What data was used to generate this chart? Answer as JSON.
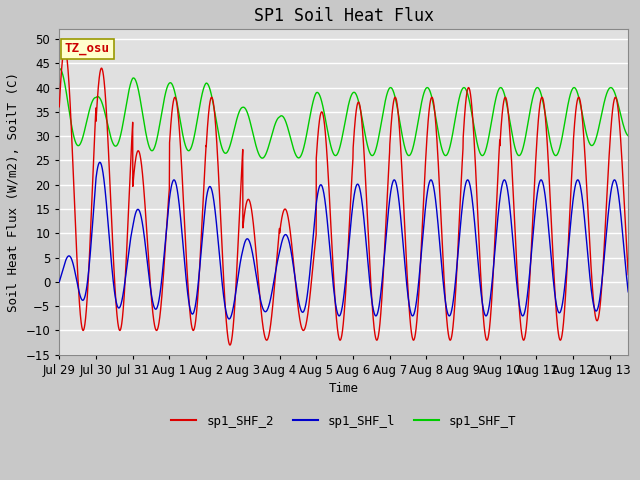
{
  "title": "SP1 Soil Heat Flux",
  "xlabel": "Time",
  "ylabel": "Soil Heat Flux (W/m2), SoilT (C)",
  "ylim": [
    -15,
    52
  ],
  "yticks": [
    -15,
    -10,
    -5,
    0,
    5,
    10,
    15,
    20,
    25,
    30,
    35,
    40,
    45,
    50
  ],
  "xlim": [
    0,
    15.5
  ],
  "bg_color": "#c8c8c8",
  "plot_bg_color": "#e0e0e0",
  "grid_color": "#ffffff",
  "annotation_text": "TZ_osu",
  "annotation_bg": "#ffffcc",
  "annotation_border": "#999900",
  "line_shf2_color": "#dd0000",
  "line_shf1_color": "#0000cc",
  "line_shfT_color": "#00cc00",
  "legend_labels": [
    "sp1_SHF_2",
    "sp1_SHF_l",
    "sp1_SHF_T"
  ],
  "xtick_labels": [
    "Jul 29",
    "Jul 30",
    "Jul 31",
    "Aug 1",
    "Aug 2",
    "Aug 3",
    "Aug 4",
    "Aug 5",
    "Aug 6",
    "Aug 7",
    "Aug 8",
    "Aug 9",
    "Aug 10",
    "Aug 11",
    "Aug 12",
    "Aug 13"
  ],
  "title_fontsize": 12,
  "axis_label_fontsize": 9,
  "tick_fontsize": 8.5,
  "legend_fontsize": 9
}
